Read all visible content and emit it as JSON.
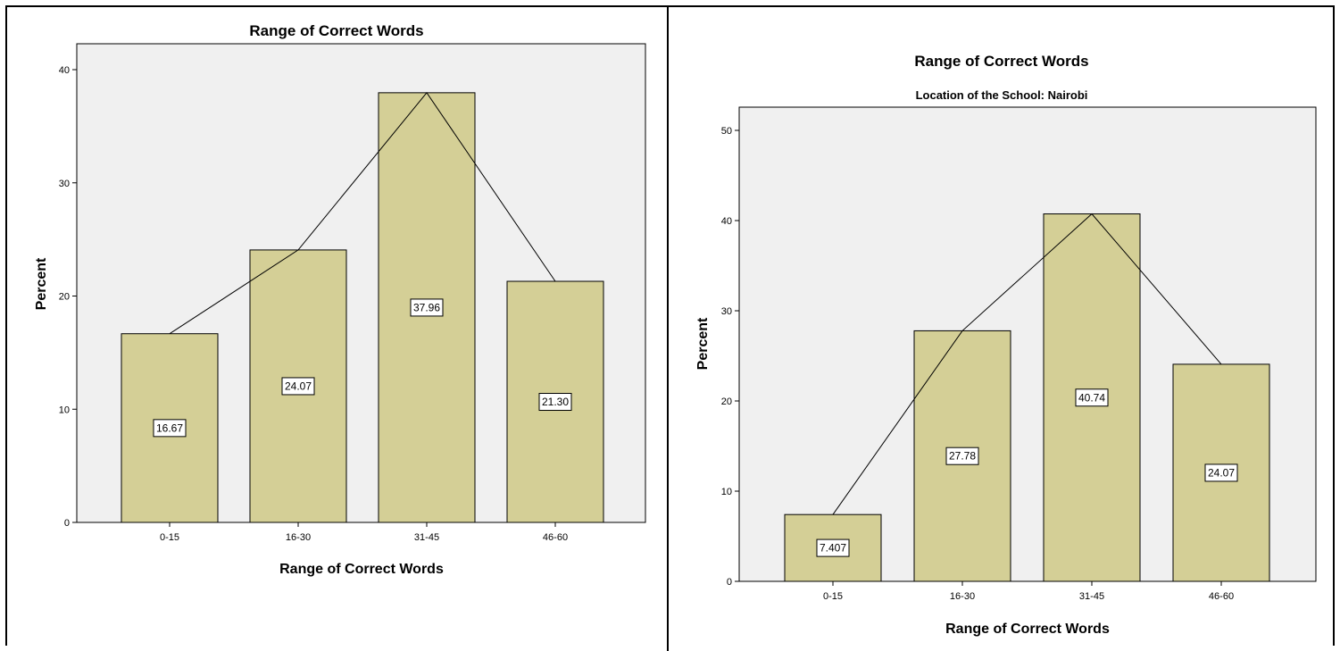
{
  "chart_data": [
    {
      "type": "bar",
      "title": "Range of Correct Words",
      "subtitle": "",
      "xlabel": "Range of Correct Words",
      "ylabel": "Percent",
      "categories": [
        "0-15",
        "16-30",
        "31-45",
        "46-60"
      ],
      "values": [
        16.67,
        24.07,
        37.96,
        21.3
      ],
      "value_labels": [
        "16.67",
        "24.07",
        "37.96",
        "21.30"
      ],
      "ylim": [
        0,
        40
      ],
      "yticks": [
        0,
        10,
        20,
        30,
        40
      ],
      "overlay": "line",
      "grid": false,
      "colors": {
        "bar": "#d4cf96",
        "plot_bg": "#f0f0f0",
        "line": "#000000"
      }
    },
    {
      "type": "bar",
      "title": "Range of Correct Words",
      "subtitle": "Location of the School: Nairobi",
      "xlabel": "Range of Correct Words",
      "ylabel": "Percent",
      "categories": [
        "0-15",
        "16-30",
        "31-45",
        "46-60"
      ],
      "values": [
        7.407,
        27.78,
        40.74,
        24.07
      ],
      "value_labels": [
        "7.407",
        "27.78",
        "40.74",
        "24.07"
      ],
      "ylim": [
        0,
        50
      ],
      "yticks": [
        0,
        10,
        20,
        30,
        40,
        50
      ],
      "overlay": "line",
      "grid": false,
      "colors": {
        "bar": "#d4cf96",
        "plot_bg": "#f0f0f0",
        "line": "#000000"
      }
    }
  ]
}
